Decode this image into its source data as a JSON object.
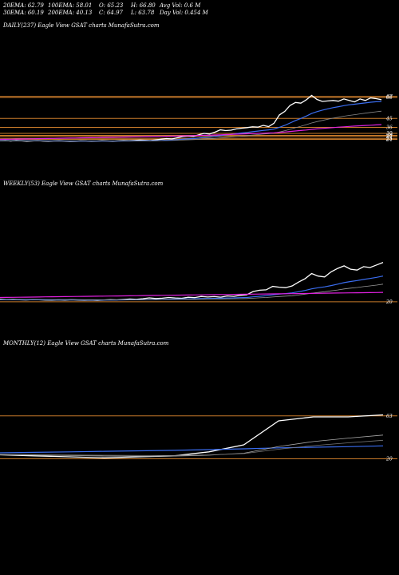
{
  "header": {
    "row1": [
      "20EMA: 62.79",
      "100EMA: 58.01",
      "O: 65.23",
      "H: 66.80",
      "Avg Vol: 0.6  M"
    ],
    "row2": [
      "30EMA: 60.19",
      "200EMA: 40.13",
      "C: 64.97",
      "L: 63.78",
      "Day Vol: 0.454  M"
    ]
  },
  "colors": {
    "background": "#000000",
    "price": "#ffffff",
    "ema_blue": "#3a6df0",
    "ema_magenta": "#e020e0",
    "level_orange": "#c87a2a"
  },
  "panels": {
    "daily": {
      "label": "DAILY(237) Eagle   View  GSAT charts MunafaSutra.com",
      "ticks": [
        "67",
        "66",
        "45",
        "36",
        "30",
        "28",
        "27",
        "25",
        "24"
      ]
    },
    "weekly": {
      "label": "WEEKLY(53) Eagle   View  GSAT charts MunafaSutra.com",
      "ticks": [
        "20"
      ]
    },
    "monthly": {
      "label": "MONTHLY(12) Eagle   View  GSAT charts MunafaSutra.com",
      "ticks": [
        "63",
        "20"
      ]
    }
  },
  "chart_data": [
    {
      "type": "line",
      "name": "daily",
      "ylim": [
        18,
        74
      ],
      "levels": [
        67,
        66,
        45,
        36,
        30,
        28,
        27,
        25,
        24
      ],
      "series": [
        {
          "name": "price",
          "color": "#ffffff",
          "values": [
            22.5,
            22.8,
            22.3,
            22.9,
            22.6,
            22.2,
            22.4,
            22.7,
            22.3,
            22.1,
            22.4,
            22.6,
            22.3,
            22.0,
            22.2,
            22.5,
            22.4,
            22.1,
            22.3,
            22.6,
            22.4,
            22.2,
            22.5,
            22.8,
            22.6,
            22.9,
            23.3,
            23.1,
            22.8,
            23.5,
            24.2,
            24.8,
            24.4,
            25.6,
            26.8,
            27.3,
            27.0,
            28.6,
            30.0,
            29.4,
            31.2,
            33.5,
            32.8,
            33.2,
            34.5,
            35.2,
            35.8,
            36.6,
            36.2,
            38.0,
            36.8,
            40.2,
            48.5,
            52.0,
            58.0,
            61.0,
            60.2,
            63.5,
            68.0,
            64.0,
            62.0,
            62.5,
            63.0,
            62.2,
            64.5,
            63.0,
            61.5,
            64.5,
            63.0,
            65.5,
            64.8,
            63.8
          ]
        },
        {
          "name": "ema_fast",
          "color": "#3a6df0",
          "values": [
            22.5,
            22.6,
            22.6,
            22.6,
            22.6,
            22.5,
            22.5,
            22.5,
            22.5,
            22.4,
            22.4,
            22.4,
            22.4,
            22.3,
            22.3,
            22.3,
            22.3,
            22.3,
            22.3,
            22.3,
            22.3,
            22.3,
            22.3,
            22.4,
            22.4,
            22.5,
            22.6,
            22.7,
            22.7,
            22.8,
            23.0,
            23.2,
            23.4,
            23.7,
            24.1,
            24.5,
            24.8,
            25.3,
            25.9,
            26.3,
            27.0,
            27.8,
            28.4,
            29.0,
            29.7,
            30.4,
            31.0,
            31.7,
            32.3,
            33.0,
            33.5,
            34.3,
            36.1,
            38.0,
            40.4,
            42.9,
            45.0,
            47.3,
            49.9,
            51.8,
            53.3,
            54.6,
            55.8,
            56.7,
            57.8,
            58.6,
            59.2,
            59.9,
            60.5,
            61.2,
            61.7,
            62.0
          ]
        },
        {
          "name": "ema_slow",
          "color": "#888888",
          "values": [
            22.6,
            22.6,
            22.6,
            22.6,
            22.6,
            22.6,
            22.6,
            22.6,
            22.6,
            22.5,
            22.5,
            22.5,
            22.5,
            22.5,
            22.5,
            22.5,
            22.5,
            22.4,
            22.4,
            22.4,
            22.4,
            22.4,
            22.4,
            22.4,
            22.4,
            22.5,
            22.5,
            22.5,
            22.6,
            22.6,
            22.7,
            22.8,
            22.9,
            23.1,
            23.3,
            23.5,
            23.7,
            24.0,
            24.3,
            24.6,
            25.0,
            25.5,
            25.9,
            26.3,
            26.8,
            27.3,
            27.8,
            28.3,
            28.8,
            29.3,
            29.7,
            30.3,
            31.4,
            32.6,
            34.1,
            35.7,
            37.1,
            38.7,
            40.4,
            41.8,
            43.0,
            44.2,
            45.3,
            46.2,
            47.2,
            48.0,
            48.7,
            49.5,
            50.2,
            51.0,
            51.6,
            52.2
          ]
        },
        {
          "name": "ema_magenta",
          "color": "#e020e0",
          "values": [
            24.0,
            24.1,
            24.2,
            24.3,
            24.4,
            24.5,
            24.6,
            24.7,
            24.8,
            24.9,
            25.0,
            25.1,
            25.2,
            25.3,
            25.4,
            25.5,
            25.6,
            25.7,
            25.8,
            25.9,
            26.0,
            26.1,
            26.2,
            26.3,
            26.4,
            26.5,
            26.6,
            26.7,
            26.8,
            26.9,
            27.0,
            27.1,
            27.2,
            27.3,
            27.5,
            27.6,
            27.8,
            27.9,
            28.1,
            28.2,
            28.4,
            28.6,
            28.8,
            29.0,
            29.2,
            29.4,
            29.6,
            29.8,
            30.0,
            30.2,
            30.4,
            30.6,
            31.0,
            31.4,
            31.9,
            32.4,
            32.9,
            33.4,
            34.0,
            34.5,
            35.0,
            35.4,
            35.8,
            36.2,
            36.6,
            37.0,
            37.3,
            37.6,
            37.9,
            38.2,
            38.5,
            38.8
          ]
        }
      ]
    },
    {
      "type": "line",
      "name": "weekly",
      "ylim": [
        18,
        74
      ],
      "levels": [
        20
      ],
      "series": [
        {
          "name": "price",
          "color": "#ffffff",
          "values": [
            23.0,
            22.6,
            22.8,
            22.4,
            22.1,
            22.5,
            22.3,
            22.0,
            21.8,
            22.2,
            21.9,
            22.3,
            22.0,
            21.7,
            22.0,
            21.6,
            22.1,
            22.4,
            22.2,
            22.7,
            23.2,
            22.9,
            23.6,
            24.5,
            23.8,
            24.2,
            25.0,
            24.4,
            24.1,
            25.3,
            24.9,
            26.2,
            25.6,
            26.0,
            25.4,
            26.8,
            26.3,
            27.5,
            28.2,
            32.0,
            33.5,
            34.0,
            38.0,
            37.0,
            36.5,
            38.5,
            43.0,
            47.0,
            53.0,
            50.0,
            49.0,
            55.0,
            59.0,
            62.0,
            58.0,
            57.0,
            61.0,
            60.0,
            63.0,
            66.0
          ]
        },
        {
          "name": "ema_blue",
          "color": "#3a6df0",
          "values": [
            22.4,
            22.4,
            22.4,
            22.4,
            22.3,
            22.3,
            22.3,
            22.3,
            22.2,
            22.2,
            22.2,
            22.2,
            22.2,
            22.1,
            22.1,
            22.1,
            22.1,
            22.1,
            22.1,
            22.2,
            22.3,
            22.3,
            22.4,
            22.6,
            22.7,
            22.8,
            23.0,
            23.1,
            23.2,
            23.4,
            23.5,
            23.7,
            23.9,
            24.0,
            24.2,
            24.4,
            24.5,
            24.8,
            25.0,
            25.7,
            26.4,
            27.1,
            28.1,
            28.9,
            29.6,
            30.4,
            31.7,
            33.2,
            35.1,
            36.4,
            37.4,
            38.9,
            40.6,
            42.4,
            43.7,
            44.8,
            46.1,
            47.2,
            48.5,
            50.0
          ]
        },
        {
          "name": "ema_gray",
          "color": "#999999",
          "values": [
            22.8,
            22.8,
            22.7,
            22.7,
            22.7,
            22.6,
            22.6,
            22.6,
            22.5,
            22.5,
            22.5,
            22.5,
            22.4,
            22.4,
            22.4,
            22.4,
            22.3,
            22.3,
            22.3,
            22.3,
            22.4,
            22.4,
            22.4,
            22.5,
            22.5,
            22.6,
            22.7,
            22.7,
            22.8,
            22.9,
            22.9,
            23.0,
            23.1,
            23.2,
            23.3,
            23.4,
            23.5,
            23.6,
            23.8,
            24.2,
            24.6,
            25.0,
            25.6,
            26.1,
            26.6,
            27.1,
            27.9,
            28.8,
            30.0,
            30.9,
            31.7,
            32.7,
            33.8,
            35.0,
            35.9,
            36.7,
            37.7,
            38.5,
            39.5,
            40.6
          ]
        },
        {
          "name": "ema_magenta",
          "color": "#e020e0",
          "values": [
            25.0,
            25.1,
            25.2,
            25.3,
            25.4,
            25.5,
            25.6,
            25.7,
            25.8,
            25.9,
            26.0,
            26.1,
            26.2,
            26.3,
            26.4,
            26.5,
            26.6,
            26.7,
            26.8,
            26.9,
            27.0,
            27.1,
            27.2,
            27.3,
            27.4,
            27.5,
            27.6,
            27.7,
            27.8,
            27.9,
            28.0,
            28.1,
            28.2,
            28.3,
            28.4,
            28.5,
            28.6,
            28.7,
            28.8,
            28.9,
            29.0,
            29.1,
            29.2,
            29.3,
            29.4,
            29.5,
            29.6,
            29.7,
            29.8,
            29.9,
            30.0,
            30.1,
            30.2,
            30.3,
            30.4,
            30.5,
            30.6,
            30.7,
            30.8,
            31.0
          ]
        }
      ]
    },
    {
      "type": "line",
      "name": "monthly",
      "ylim": [
        18,
        66
      ],
      "levels": [
        63,
        20
      ],
      "series": [
        {
          "name": "price",
          "color": "#ffffff",
          "values": [
            24.0,
            23.0,
            22.0,
            21.0,
            22.0,
            23.0,
            27.0,
            34.0,
            58.0,
            62.0,
            62.0,
            64.0
          ]
        },
        {
          "name": "ema_blue",
          "color": "#3a6df0",
          "values": [
            26.0,
            26.5,
            27.0,
            27.5,
            28.0,
            28.5,
            29.2,
            30.0,
            31.0,
            31.6,
            32.2,
            33.0
          ]
        },
        {
          "name": "ema_gray1",
          "color": "#aaaaaa",
          "values": [
            24.0,
            23.7,
            23.3,
            22.8,
            22.6,
            22.7,
            23.6,
            25.6,
            32.3,
            37.3,
            40.7,
            43.8
          ]
        },
        {
          "name": "ema_gray2",
          "color": "#777777",
          "values": [
            24.5,
            24.2,
            23.9,
            23.6,
            23.4,
            23.4,
            23.9,
            25.2,
            29.6,
            33.2,
            36.0,
            38.6
          ]
        }
      ]
    }
  ]
}
